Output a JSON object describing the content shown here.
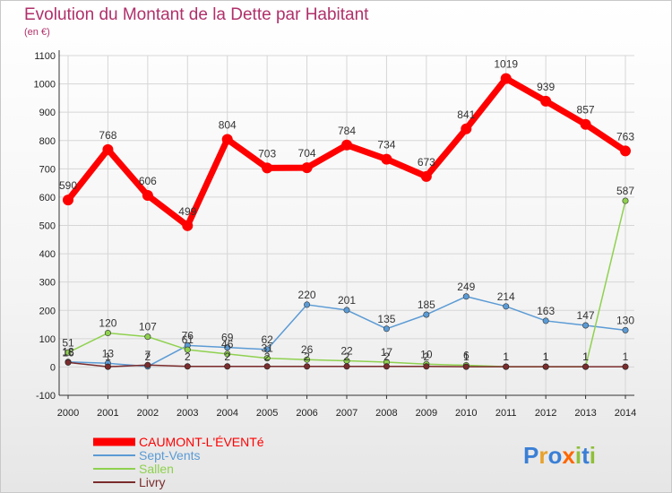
{
  "title": "Evolution du Montant de la Dette par Habitant",
  "subtitle": "(en €)",
  "brand": "Proxiti",
  "chart_data": {
    "type": "line",
    "x": [
      "2000",
      "2001",
      "2002",
      "2003",
      "2004",
      "2005",
      "2006",
      "2007",
      "2008",
      "2009",
      "2010",
      "2011",
      "2012",
      "2013",
      "2014"
    ],
    "ylim": [
      -100,
      1100
    ],
    "yticks": [
      -100,
      0,
      100,
      200,
      300,
      400,
      500,
      600,
      700,
      800,
      900,
      1000,
      1100
    ],
    "grid": true,
    "legend_position": "bottom-left",
    "series": [
      {
        "name": "CAUMONT-L'ÉVENTé",
        "color": "#ff0000",
        "values": [
          590,
          768,
          606,
          499,
          804,
          703,
          704,
          784,
          734,
          673,
          841,
          1019,
          939,
          857,
          763
        ]
      },
      {
        "name": "Sept-Vents",
        "color": "#5b9bd5",
        "values": [
          18,
          13,
          2,
          76,
          69,
          62,
          220,
          201,
          135,
          185,
          249,
          214,
          163,
          147,
          130
        ]
      },
      {
        "name": "Sallen",
        "color": "#8fd14f",
        "values": [
          51,
          120,
          107,
          61,
          46,
          31,
          26,
          22,
          17,
          10,
          6,
          1,
          1,
          1,
          587
        ]
      },
      {
        "name": "Livry",
        "color": "#7b2c2c",
        "values": [
          16,
          1,
          7,
          2,
          2,
          2,
          2,
          2,
          2,
          2,
          1,
          1,
          1,
          1,
          1
        ]
      }
    ]
  }
}
